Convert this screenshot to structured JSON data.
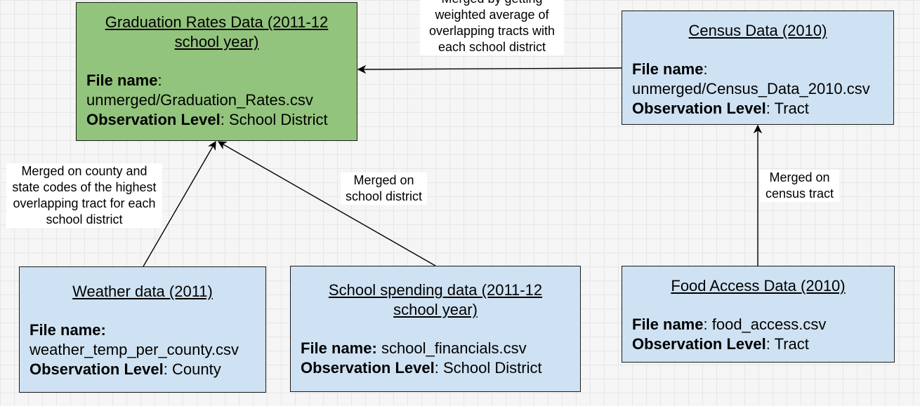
{
  "boxes": {
    "graduation": {
      "title": "Graduation Rates Data (2011-12 school year)",
      "file_label": "File name",
      "file_value": "unmerged/Graduation_Rates.csv",
      "obs_label": "Observation Level",
      "obs_value": "School District",
      "color": "#93c47d"
    },
    "census": {
      "title": "Census Data (2010)",
      "file_label": "File name",
      "file_value": "unmerged/Census_Data_2010.csv",
      "obs_label": "Observation Level",
      "obs_value": "Tract",
      "color": "#cfe2f3"
    },
    "weather": {
      "title": "Weather data (2011)",
      "file_label": "File name:",
      "file_value": "weather_temp_per_county.csv",
      "obs_label": "Observation Level",
      "obs_value": "County",
      "color": "#cfe2f3"
    },
    "spending": {
      "title": "School spending data (2011-12 school year)",
      "file_label": "File name:",
      "file_value": "school_financials.csv",
      "obs_label": "Observation Level",
      "obs_value": "School District",
      "color": "#cfe2f3"
    },
    "food": {
      "title": "Food Access Data (2010)",
      "file_label": "File name",
      "file_value": "food_access.csv",
      "obs_label": "Observation Level",
      "obs_value": "Tract",
      "color": "#cfe2f3"
    }
  },
  "edges": {
    "census_to_graduation": "Merged by getting weighted average of overlapping tracts with each school district",
    "weather_to_graduation": "Merged on county and state codes of the highest overlapping tract for each school district",
    "spending_to_graduation": "Merged on school district",
    "food_to_census": "Merged on census tract"
  },
  "separators": {
    "colon": ":",
    "space": " "
  }
}
